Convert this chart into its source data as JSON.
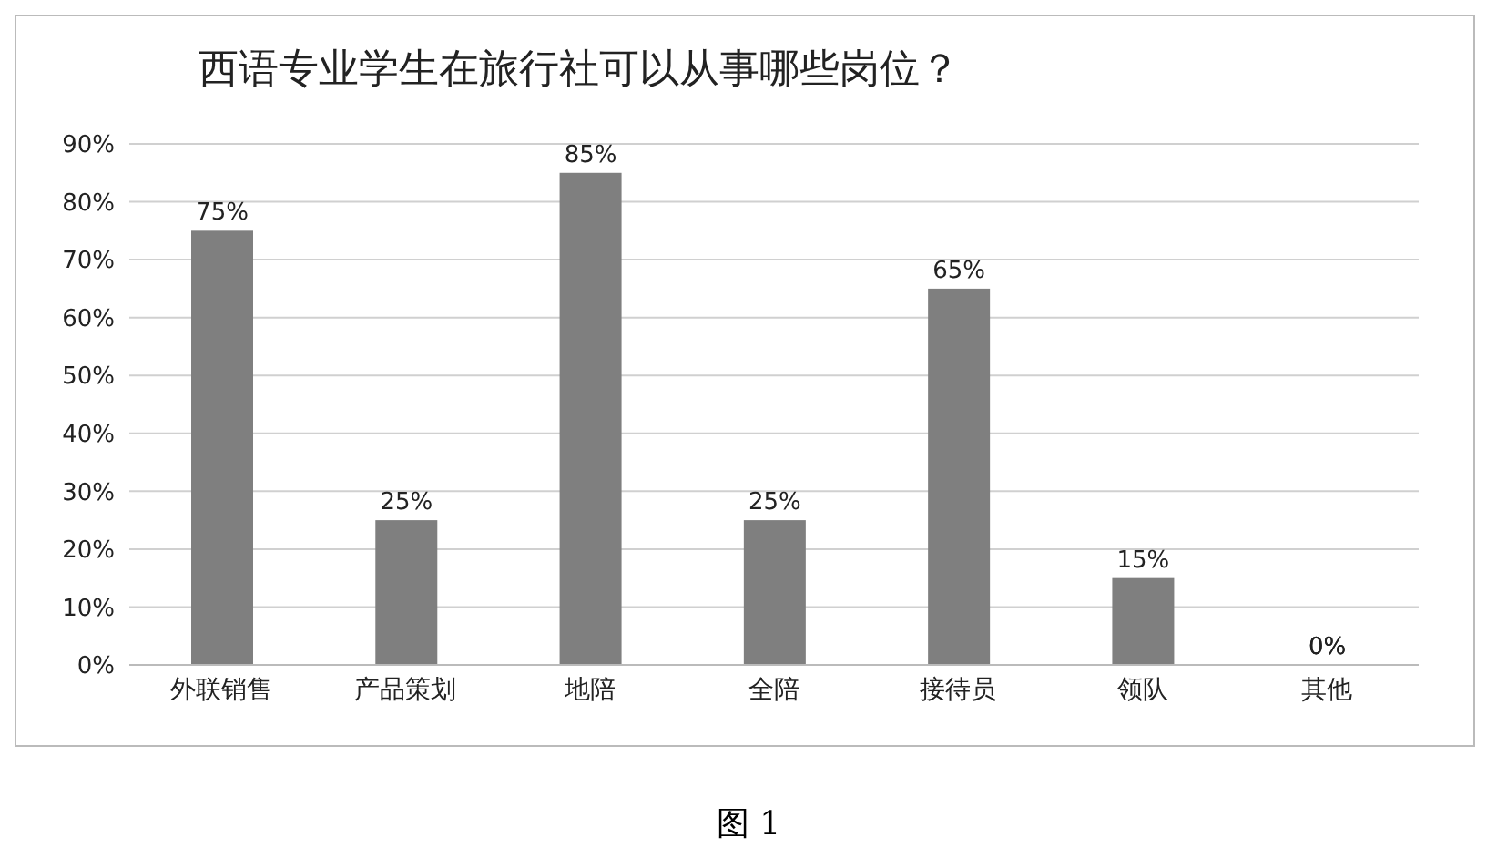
{
  "chart_data": {
    "type": "bar",
    "title": "西语专业学生在旅行社可以从事哪些岗位？",
    "categories": [
      "外联销售",
      "产品策划",
      "地陪",
      "全陪",
      "接待员",
      "领队",
      "其他"
    ],
    "values": [
      75,
      25,
      85,
      25,
      65,
      15,
      0
    ],
    "value_labels": [
      "75%",
      "25%",
      "85%",
      "25%",
      "65%",
      "15%",
      "0%"
    ],
    "color": "#7f7f7f",
    "ylim": [
      0,
      90
    ],
    "yticks": [
      {
        "value": 0,
        "label": "0%"
      },
      {
        "value": 10,
        "label": "10%"
      },
      {
        "value": 20,
        "label": "20%"
      },
      {
        "value": 30,
        "label": "30%"
      },
      {
        "value": 40,
        "label": "40%"
      },
      {
        "value": 50,
        "label": "50%"
      },
      {
        "value": 60,
        "label": "60%"
      },
      {
        "value": 70,
        "label": "70%"
      },
      {
        "value": 80,
        "label": "80%"
      },
      {
        "value": 90,
        "label": "90%"
      }
    ],
    "grid": "y",
    "annotations": [
      "图 1"
    ]
  }
}
